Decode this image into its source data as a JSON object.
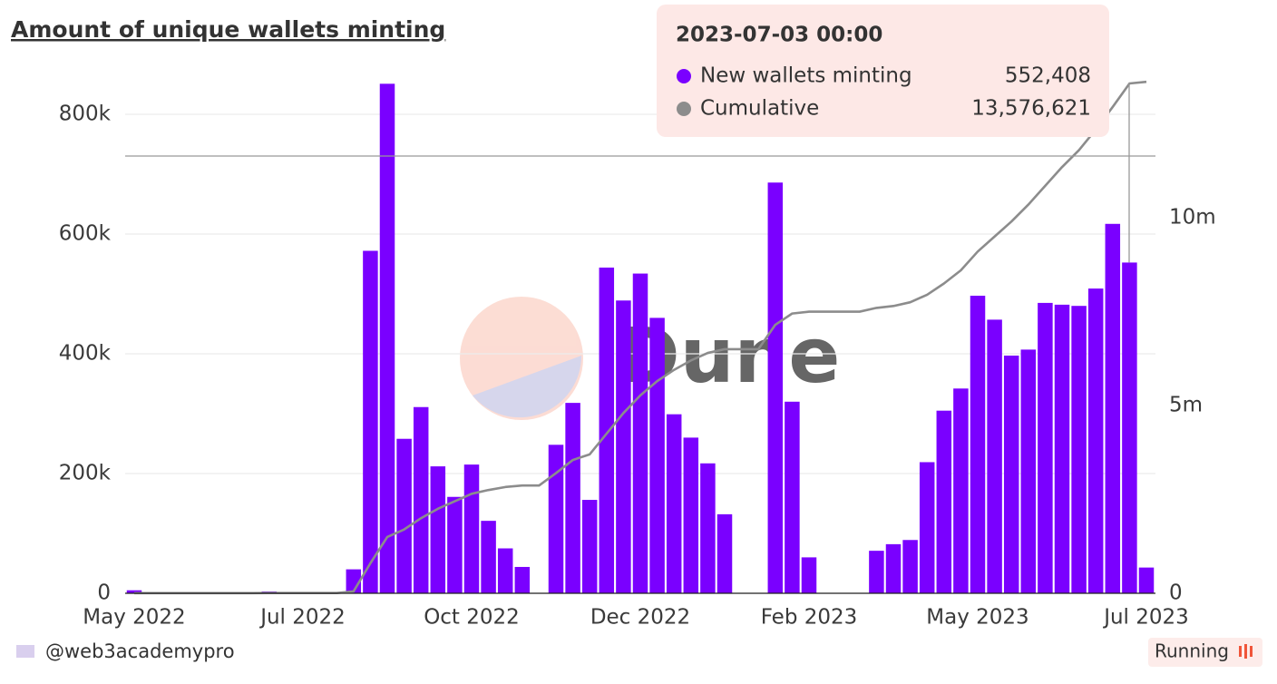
{
  "chart_data": {
    "type": "bar_line",
    "title": "Amount of unique wallets minting",
    "categories": [
      "May 2022",
      null,
      null,
      null,
      null,
      null,
      null,
      null,
      null,
      null,
      "Jul 2022",
      null,
      null,
      null,
      null,
      null,
      null,
      null,
      null,
      null,
      "Oct 2022",
      null,
      null,
      null,
      null,
      null,
      null,
      null,
      null,
      null,
      "Dec 2022",
      null,
      null,
      null,
      null,
      null,
      null,
      null,
      null,
      null,
      "Feb 2023",
      null,
      null,
      null,
      null,
      null,
      null,
      null,
      null,
      null,
      "May 2023",
      null,
      null,
      null,
      null,
      null,
      null,
      null,
      null,
      null,
      "Jul 2023"
    ],
    "series": [
      {
        "name": "New wallets minting",
        "color": "#7a00ff",
        "type": "bar",
        "values": [
          5000,
          0,
          0,
          0,
          0,
          0,
          0,
          0,
          3000,
          0,
          0,
          0,
          0,
          40000,
          572000,
          851000,
          258000,
          311000,
          212000,
          161000,
          215000,
          121000,
          75000,
          44000,
          0,
          248000,
          318000,
          156000,
          544000,
          489000,
          534000,
          460000,
          299000,
          260000,
          217000,
          132000,
          0,
          0,
          686000,
          320000,
          60000,
          0,
          0,
          0,
          71000,
          82000,
          89000,
          219000,
          305000,
          342000,
          497000,
          457000,
          397000,
          407000,
          485000,
          482000,
          480000,
          509000,
          617000,
          552408,
          43000
        ]
      },
      {
        "name": "Cumulative",
        "color": "#8c8c8c",
        "type": "line",
        "axis": "y2",
        "values": [
          5000,
          5000,
          5000,
          5000,
          5000,
          5000,
          5000,
          5000,
          8000,
          8000,
          8000,
          8000,
          8000,
          50000,
          800000,
          1500000,
          1700000,
          2000000,
          2250000,
          2450000,
          2650000,
          2750000,
          2830000,
          2870000,
          2870000,
          3200000,
          3550000,
          3700000,
          4250000,
          4800000,
          5270000,
          5650000,
          5950000,
          6200000,
          6400000,
          6500000,
          6500000,
          6500000,
          7150000,
          7450000,
          7500000,
          7500000,
          7500000,
          7500000,
          7600000,
          7650000,
          7750000,
          7950000,
          8250000,
          8600000,
          9100000,
          9500000,
          9900000,
          10350000,
          10850000,
          11350000,
          11800000,
          12350000,
          12950000,
          13576621,
          13620000
        ]
      }
    ],
    "ylim": [
      0,
      900000
    ],
    "yticks": [
      0,
      {
        "value": 200000,
        "label": "200k"
      },
      {
        "value": 400000,
        "label": "400k"
      },
      {
        "value": 600000,
        "label": "600k"
      },
      {
        "value": 800000,
        "label": "800k"
      }
    ],
    "y2lim": [
      0,
      14350000
    ],
    "y2ticks": [
      0,
      {
        "value": 5000000,
        "label": "5m"
      },
      {
        "value": 10000000,
        "label": "10m"
      }
    ],
    "grid": true,
    "tooltip": {
      "title": "2023-07-03 00:00",
      "values": [
        552408,
        13576621
      ],
      "value_labels": [
        "552,408",
        "13,576,621"
      ]
    },
    "watermark": "Dune",
    "author": "@web3academypro",
    "status": "Running"
  }
}
